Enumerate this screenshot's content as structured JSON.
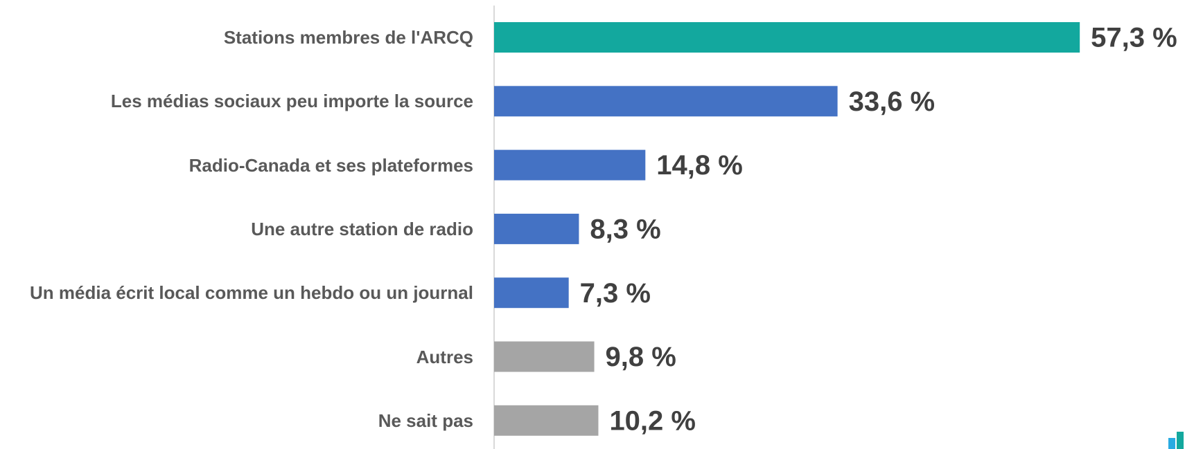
{
  "chart_data": {
    "type": "barh",
    "categories": [
      "Stations membres de l'ARCQ",
      "Les médias sociaux peu importe la source",
      "Radio-Canada et ses plateformes",
      "Une autre station de radio",
      "Un média écrit local comme un hebdo ou un journal",
      "Autres",
      "Ne sait pas"
    ],
    "values": [
      57.3,
      33.6,
      14.8,
      8.3,
      7.3,
      9.8,
      10.2
    ],
    "value_labels": [
      "57,3 %",
      "33,6 %",
      "14,8 %",
      "8,3 %",
      "7,3 %",
      "9,8 %",
      "10,2 %"
    ],
    "colors": [
      "#13a89e",
      "#4472c4",
      "#4472c4",
      "#4472c4",
      "#4472c4",
      "#a5a5a5",
      "#a5a5a5"
    ],
    "xlim": [
      0,
      68
    ]
  }
}
